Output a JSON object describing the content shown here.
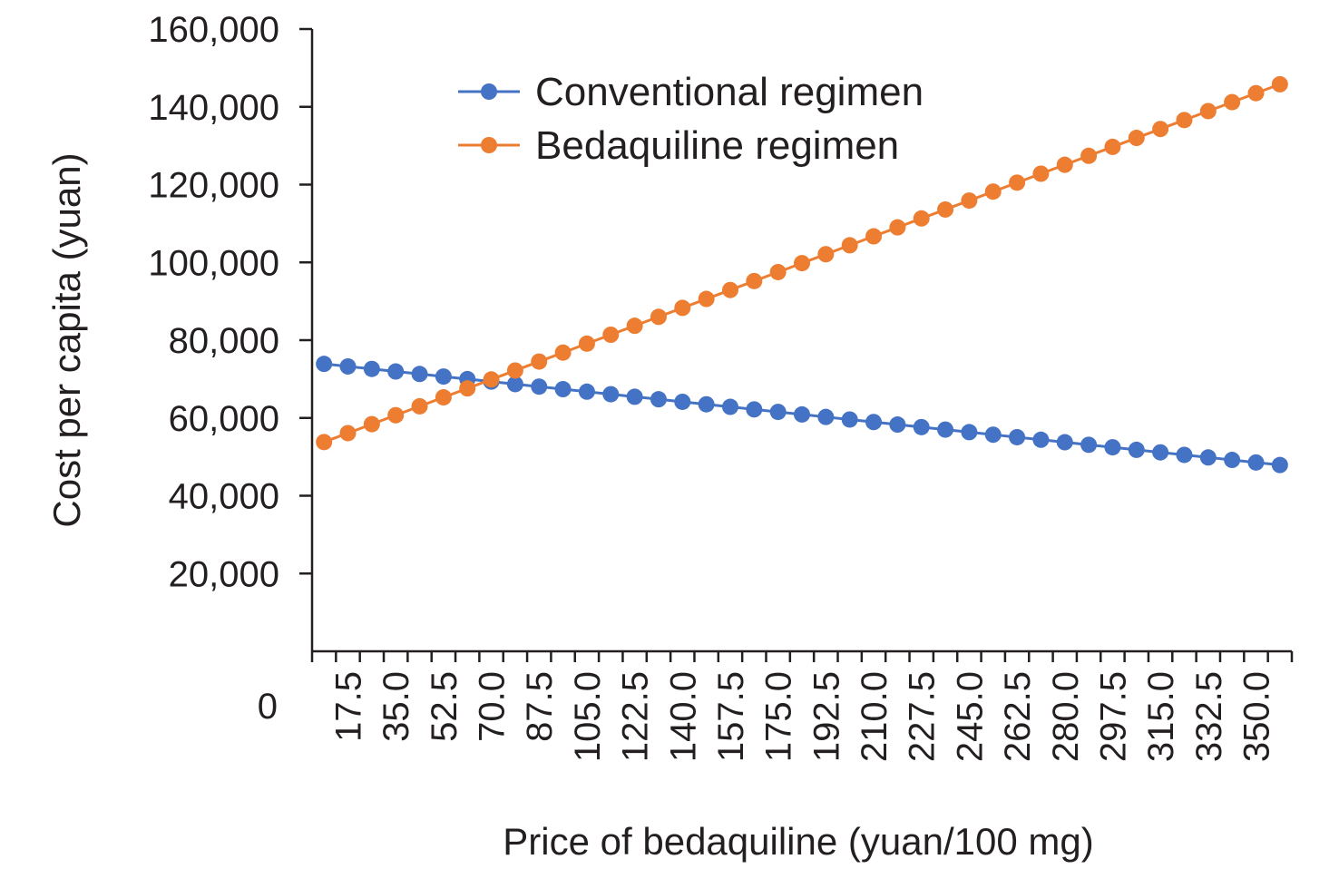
{
  "chart_data": {
    "type": "line",
    "title": "",
    "xlabel": "Price of bedaquiline (yuan/100 mg)",
    "ylabel": "Cost per capita (yuan)",
    "ylim": [
      0,
      160000
    ],
    "yticks": [
      "20,000",
      "40,000",
      "60,000",
      "80,000",
      "100,000",
      "120,000",
      "140,000",
      "160,000"
    ],
    "y_zero_label": "0",
    "x_tick_labels": [
      "17.5",
      "35.0",
      "52.5",
      "70.0",
      "87.5",
      "105.0",
      "122.5",
      "140.0",
      "157.5",
      "175.0",
      "192.5",
      "210.0",
      "227.5",
      "245.0",
      "262.5",
      "280.0",
      "297.5",
      "315.0",
      "332.5",
      "350.0"
    ],
    "x": [
      0,
      8.75,
      17.5,
      26.25,
      35,
      43.75,
      52.5,
      61.25,
      70,
      78.75,
      87.5,
      96.25,
      105,
      113.75,
      122.5,
      131.25,
      140,
      148.75,
      157.5,
      166.25,
      175,
      183.75,
      192.5,
      201.25,
      210,
      218.75,
      227.5,
      236.25,
      245,
      253.75,
      262.5,
      271.25,
      280,
      288.75,
      297.5,
      306.25,
      315,
      323.75,
      332.5,
      341.25,
      350
    ],
    "grid": false,
    "legend_position": "top-center",
    "series": [
      {
        "name": "Conventional regimen",
        "color": "#4472c4",
        "values": [
          73900,
          73250,
          72600,
          71950,
          71300,
          70650,
          70000,
          69350,
          68700,
          68050,
          67400,
          66750,
          66100,
          65450,
          64800,
          64150,
          63500,
          62850,
          62200,
          61550,
          60900,
          60250,
          59600,
          58950,
          58300,
          57650,
          57000,
          56350,
          55700,
          55050,
          54400,
          53750,
          53100,
          52450,
          51800,
          51150,
          50500,
          49850,
          49200,
          48550,
          47900
        ]
      },
      {
        "name": "Bedaquiline regimen",
        "color": "#ed7d31",
        "values": [
          53800,
          56100,
          58400,
          60700,
          63000,
          65300,
          67600,
          69900,
          72200,
          74500,
          76800,
          79100,
          81400,
          83700,
          86000,
          88300,
          90600,
          92900,
          95200,
          97500,
          99800,
          102100,
          104400,
          106700,
          109000,
          111300,
          113600,
          115900,
          118200,
          120500,
          122800,
          125100,
          127400,
          129700,
          132000,
          134300,
          136600,
          138900,
          141200,
          143500,
          145800
        ]
      }
    ]
  }
}
